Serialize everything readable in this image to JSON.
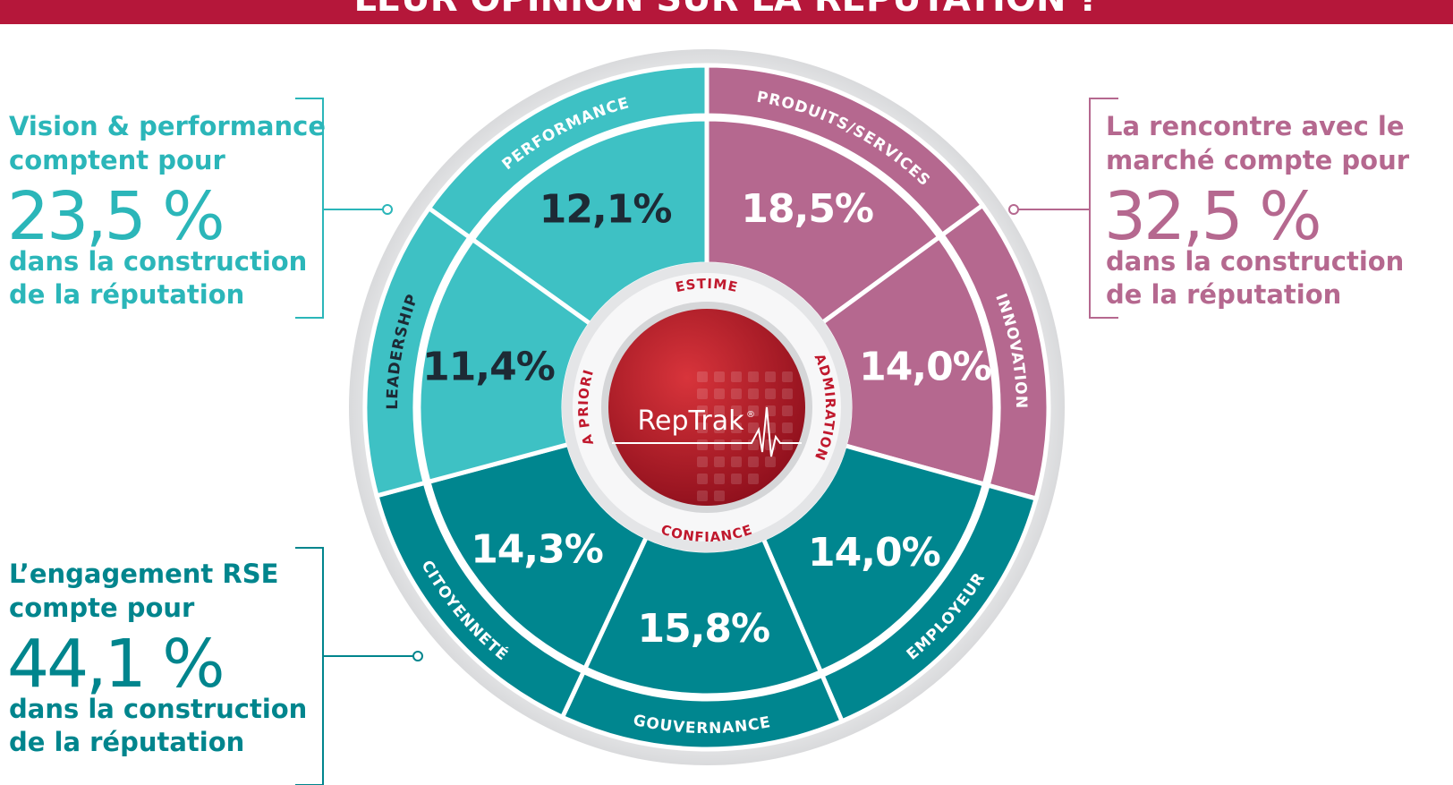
{
  "header": {
    "title": "LEUR OPINION SUR LA RÉPUTATION ?"
  },
  "callouts": [
    {
      "line1": "Vision & performance",
      "line2": "comptent pour",
      "share": "23,5 %",
      "line3": "dans la construction",
      "line4": "de la réputation"
    },
    {
      "line1": "La rencontre avec le",
      "line2": "marché compte pour",
      "share": "32,5 %",
      "line3": "dans la construction",
      "line4": "de la réputation"
    },
    {
      "line1": "L’engagement RSE",
      "line2": "compte pour",
      "share": "44,1 %",
      "line3": "dans la construction",
      "line4": "de la réputation"
    }
  ],
  "segments": [
    {
      "label": "PERFORMANCE",
      "value": "12,1%"
    },
    {
      "label": "PRODUITS/SERVICES",
      "value": "18,5%"
    },
    {
      "label": "INNOVATION",
      "value": "14,0%"
    },
    {
      "label": "EMPLOYEUR",
      "value": "14,0%"
    },
    {
      "label": "GOUVERNANCE",
      "value": "15,8%"
    },
    {
      "label": "CITOYENNETÉ",
      "value": "14,3%"
    },
    {
      "label": "LEADERSHIP",
      "value": "11,4%"
    }
  ],
  "center": {
    "brand": "RepTrak",
    "mark": "®",
    "rings": [
      "ESTIME",
      "ADMIRATION",
      "CONFIANCE",
      "A PRIORI"
    ]
  }
}
